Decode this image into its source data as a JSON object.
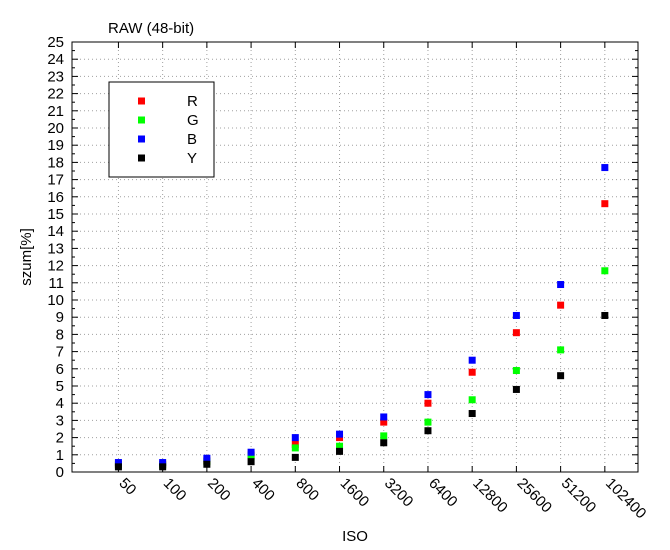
{
  "chart_data": {
    "type": "scatter",
    "title": "RAW (48-bit)",
    "xlabel": "ISO",
    "ylabel": "szum[%]",
    "categories": [
      "50",
      "100",
      "200",
      "400",
      "800",
      "1600",
      "3200",
      "6400",
      "12800",
      "25600",
      "51200",
      "102400"
    ],
    "ylim": [
      0,
      25
    ],
    "yticks": [
      0,
      1,
      2,
      3,
      4,
      5,
      6,
      7,
      8,
      9,
      10,
      11,
      12,
      13,
      14,
      15,
      16,
      17,
      18,
      19,
      20,
      21,
      22,
      23,
      24,
      25
    ],
    "grid": true,
    "legend_position": "top-left",
    "series": [
      {
        "name": "R",
        "color": "#ff0000",
        "values": [
          0.45,
          0.45,
          0.65,
          1.0,
          1.6,
          2.0,
          2.9,
          4.0,
          5.8,
          8.1,
          9.7,
          15.6
        ]
      },
      {
        "name": "G",
        "color": "#00ff00",
        "values": [
          0.4,
          0.4,
          0.6,
          0.95,
          1.4,
          1.5,
          2.1,
          2.9,
          4.2,
          5.9,
          7.1,
          11.7
        ]
      },
      {
        "name": "B",
        "color": "#0000ff",
        "values": [
          0.55,
          0.55,
          0.8,
          1.15,
          2.0,
          2.2,
          3.2,
          4.5,
          6.5,
          9.1,
          10.9,
          17.7
        ]
      },
      {
        "name": "Y",
        "color": "#000000",
        "values": [
          0.3,
          0.3,
          0.45,
          0.6,
          0.85,
          1.2,
          1.7,
          2.4,
          3.4,
          4.8,
          5.6,
          9.1
        ]
      }
    ]
  }
}
